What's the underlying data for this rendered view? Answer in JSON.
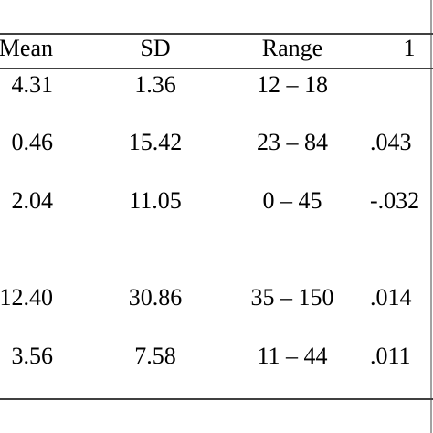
{
  "table": {
    "headers": [
      "Mean",
      "SD",
      "Range",
      "1"
    ],
    "rows": [
      [
        "4.31",
        "1.36",
        "12 – 18"
      ],
      [
        "0.46",
        "15.42",
        "23 – 84",
        ".043"
      ],
      [
        "2.04",
        "11.05",
        "0 – 45",
        "-.032"
      ],
      [
        "12.40",
        "30.86",
        "35 – 150",
        ".014"
      ],
      [
        "3.56",
        "7.58",
        "11 – 44",
        ".011"
      ]
    ]
  }
}
